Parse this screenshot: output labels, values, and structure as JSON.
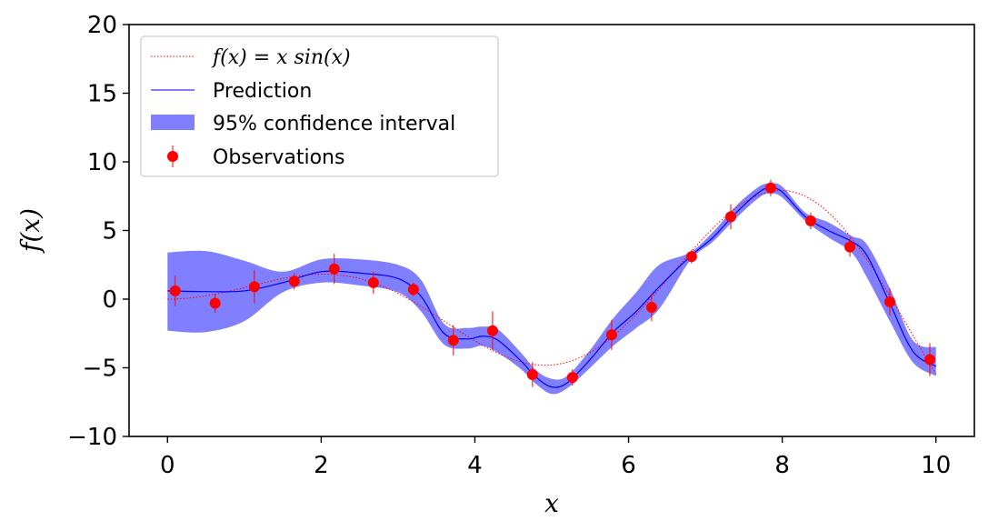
{
  "chart_data": {
    "type": "line",
    "xlabel": "x",
    "ylabel": "f(x)",
    "xlim": [
      -0.5,
      10.5
    ],
    "ylim": [
      -10,
      20
    ],
    "xticks": [
      0,
      2,
      4,
      6,
      8,
      10
    ],
    "yticks": [
      -10,
      -5,
      0,
      5,
      10,
      15,
      20
    ],
    "xtick_labels": [
      "0",
      "2",
      "4",
      "6",
      "8",
      "10"
    ],
    "ytick_labels": [
      "−10",
      "−5",
      "0",
      "5",
      "10",
      "15",
      "20"
    ],
    "grid": false,
    "legend_position": "upper-left",
    "series": [
      {
        "name": "f(x) = x sin(x)",
        "kind": "line",
        "style": "dotted",
        "color": "#ff0000",
        "function": "x*sin(x)"
      },
      {
        "name": "Prediction",
        "kind": "line",
        "style": "solid",
        "color": "#0000ff",
        "x": [
          0.0,
          0.5,
          1.0,
          1.5,
          2.0,
          2.5,
          3.0,
          3.3,
          3.6,
          3.9,
          4.1,
          4.3,
          4.6,
          4.8,
          5.0,
          5.2,
          5.5,
          5.8,
          6.1,
          6.4,
          6.8,
          7.1,
          7.4,
          7.7,
          7.85,
          8.0,
          8.3,
          8.6,
          8.9,
          9.1,
          9.4,
          9.7,
          10.0
        ],
        "y": [
          0.6,
          0.55,
          0.6,
          1.2,
          2.0,
          1.9,
          1.5,
          0.2,
          -2.5,
          -2.9,
          -2.7,
          -3.0,
          -4.5,
          -5.7,
          -6.4,
          -6.1,
          -4.4,
          -2.4,
          -0.9,
          0.9,
          3.1,
          4.5,
          6.3,
          7.8,
          8.1,
          7.8,
          6.0,
          5.0,
          4.2,
          3.2,
          -0.3,
          -3.8,
          -4.9
        ]
      },
      {
        "name": "95% confidence interval",
        "kind": "band",
        "color": "#0000ff",
        "opacity": 0.5,
        "x": [
          0.0,
          0.5,
          1.0,
          1.5,
          2.0,
          2.5,
          3.0,
          3.3,
          3.6,
          3.9,
          4.1,
          4.3,
          4.6,
          4.8,
          5.0,
          5.2,
          5.5,
          5.8,
          6.1,
          6.4,
          6.8,
          7.1,
          7.4,
          7.7,
          7.85,
          8.0,
          8.3,
          8.6,
          8.9,
          9.1,
          9.4,
          9.7,
          10.0
        ],
        "lower": [
          -2.3,
          -2.4,
          -1.6,
          0.5,
          1.2,
          1.0,
          0.5,
          -0.9,
          -3.3,
          -3.6,
          -3.4,
          -3.9,
          -5.1,
          -6.2,
          -6.9,
          -6.5,
          -5.0,
          -3.4,
          -2.1,
          -0.7,
          2.8,
          4.2,
          5.9,
          7.4,
          7.7,
          7.4,
          5.7,
          4.5,
          3.4,
          1.6,
          -1.6,
          -4.6,
          -5.6
        ],
        "upper": [
          3.4,
          3.5,
          2.8,
          2.0,
          2.9,
          2.9,
          2.5,
          1.4,
          -1.8,
          -2.1,
          -2.0,
          -2.2,
          -3.9,
          -5.2,
          -5.8,
          -5.6,
          -3.7,
          -1.4,
          0.5,
          2.5,
          3.4,
          4.9,
          6.8,
          8.2,
          8.4,
          8.2,
          6.3,
          5.6,
          4.6,
          4.0,
          0.8,
          -3.0,
          -3.5
        ]
      },
      {
        "name": "Observations",
        "kind": "errorbar",
        "color": "#ff0000",
        "x": [
          0.1,
          0.62,
          1.13,
          1.65,
          2.17,
          2.68,
          3.2,
          3.72,
          4.23,
          4.75,
          5.27,
          5.78,
          6.3,
          6.82,
          7.33,
          7.85,
          8.37,
          8.88,
          9.4,
          9.92
        ],
        "y": [
          0.6,
          -0.3,
          0.9,
          1.3,
          2.2,
          1.2,
          0.7,
          -3.0,
          -2.3,
          -5.5,
          -5.7,
          -2.6,
          -0.6,
          3.1,
          6.0,
          8.1,
          5.7,
          3.8,
          -0.2,
          -4.4
        ],
        "err": [
          1.1,
          0.7,
          1.2,
          0.6,
          1.1,
          0.8,
          0.5,
          1.1,
          1.4,
          0.9,
          0.6,
          1.1,
          1.0,
          0.5,
          0.9,
          0.6,
          0.6,
          0.7,
          1.0,
          1.2
        ]
      }
    ]
  },
  "legend": {
    "items": [
      {
        "label_prefix": "f",
        "label_math": "(x) = x sin(x)",
        "type": "dotted-line",
        "color": "#ff0000"
      },
      {
        "label": "Prediction",
        "type": "line",
        "color": "#0000ff"
      },
      {
        "label": "95% confidence interval",
        "type": "patch",
        "color": "#8080ff"
      },
      {
        "label": "Observations",
        "type": "marker",
        "color": "#ff0000"
      }
    ]
  }
}
